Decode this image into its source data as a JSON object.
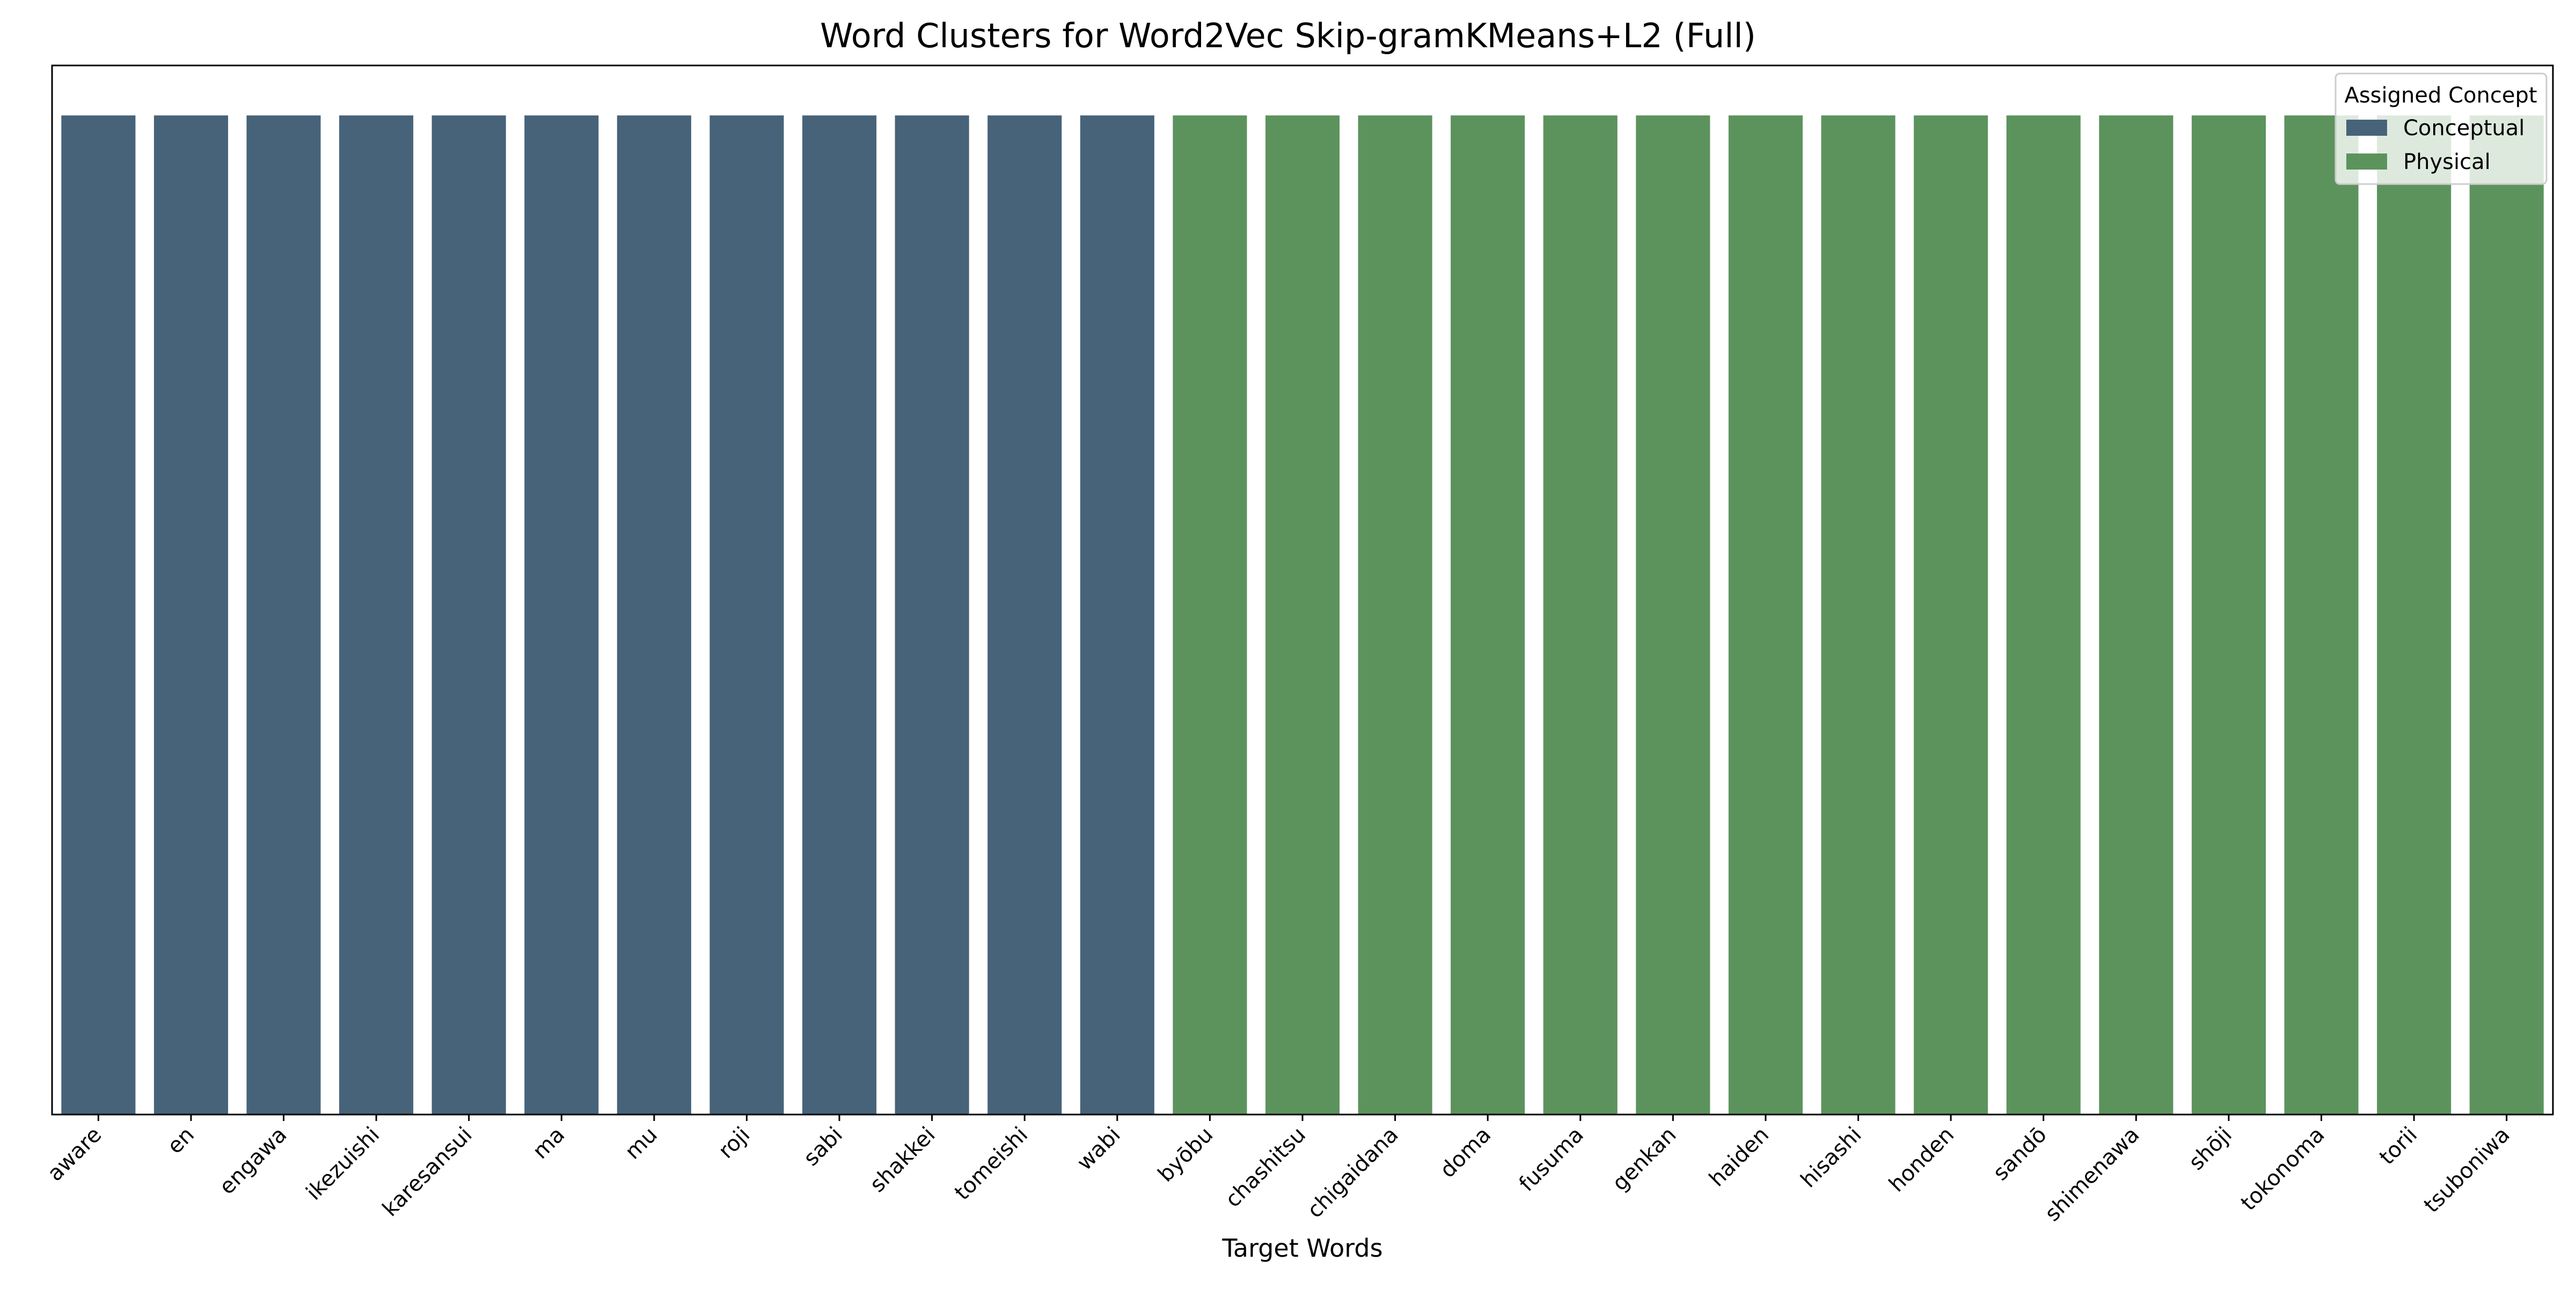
{
  "chart_data": {
    "type": "bar",
    "title": "Word Clusters for Word2Vec Skip-gramKMeans+L2 (Full)",
    "xlabel": "Target Words",
    "ylabel": "",
    "ylim": [
      0,
      1.05
    ],
    "grid": false,
    "legend": {
      "title": "Assigned Concept",
      "placement": "top-right",
      "entries": [
        {
          "label": "Conceptual",
          "color": "#476379"
        },
        {
          "label": "Physical",
          "color": "#5c935d"
        }
      ]
    },
    "categories": [
      "aware",
      "en",
      "engawa",
      "ikezuishi",
      "karesansui",
      "ma",
      "mu",
      "roji",
      "sabi",
      "shakkei",
      "tomeishi",
      "wabi",
      "byōbu",
      "chashitsu",
      "chigaidana",
      "doma",
      "fusuma",
      "genkan",
      "haiden",
      "hisashi",
      "honden",
      "sandō",
      "shimenawa",
      "shōji",
      "tokonoma",
      "torii",
      "tsuboniwa"
    ],
    "values": [
      1,
      1,
      1,
      1,
      1,
      1,
      1,
      1,
      1,
      1,
      1,
      1,
      1,
      1,
      1,
      1,
      1,
      1,
      1,
      1,
      1,
      1,
      1,
      1,
      1,
      1,
      1
    ],
    "groups": [
      "Conceptual",
      "Conceptual",
      "Conceptual",
      "Conceptual",
      "Conceptual",
      "Conceptual",
      "Conceptual",
      "Conceptual",
      "Conceptual",
      "Conceptual",
      "Conceptual",
      "Conceptual",
      "Physical",
      "Physical",
      "Physical",
      "Physical",
      "Physical",
      "Physical",
      "Physical",
      "Physical",
      "Physical",
      "Physical",
      "Physical",
      "Physical",
      "Physical",
      "Physical",
      "Physical"
    ]
  }
}
